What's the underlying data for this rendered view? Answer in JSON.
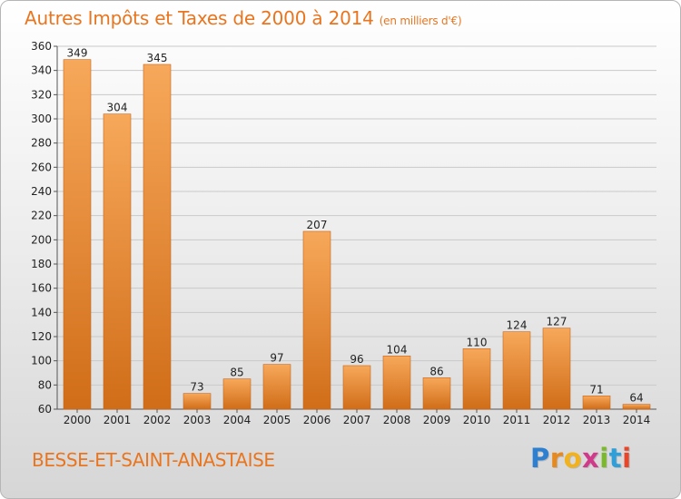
{
  "title": "Autres Impôts et Taxes de 2000 à 2014",
  "title_unit": "(en milliers d'€)",
  "commune": "BESSE-ET-SAINT-ANASTAISE",
  "logo": {
    "letters": [
      "P",
      "r",
      "o",
      "x",
      "i",
      "t",
      "i"
    ],
    "colors": [
      "#2e7fd0",
      "#e68a20",
      "#f2b21e",
      "#d13a8a",
      "#7aba2a",
      "#2e9fd8",
      "#e8462a"
    ]
  },
  "colors": {
    "accent": "#e9751f",
    "bar_light": "#f7a85a",
    "bar_dark": "#d06d18",
    "grid": "#c9c9c9"
  },
  "chart_data": {
    "type": "bar",
    "title": "Autres Impôts et Taxes de 2000 à 2014",
    "subtitle": "(en milliers d'€)",
    "xlabel": "",
    "ylabel": "",
    "categories": [
      "2000",
      "2001",
      "2002",
      "2003",
      "2004",
      "2005",
      "2006",
      "2007",
      "2008",
      "2009",
      "2010",
      "2011",
      "2012",
      "2013",
      "2014"
    ],
    "values": [
      349,
      304,
      345,
      73,
      85,
      97,
      207,
      96,
      104,
      86,
      110,
      124,
      127,
      71,
      64
    ],
    "ylim": [
      60,
      360
    ],
    "yticks": [
      60,
      80,
      100,
      120,
      140,
      160,
      180,
      200,
      220,
      240,
      260,
      280,
      300,
      320,
      340,
      360
    ],
    "grid": true,
    "legend": "none"
  }
}
